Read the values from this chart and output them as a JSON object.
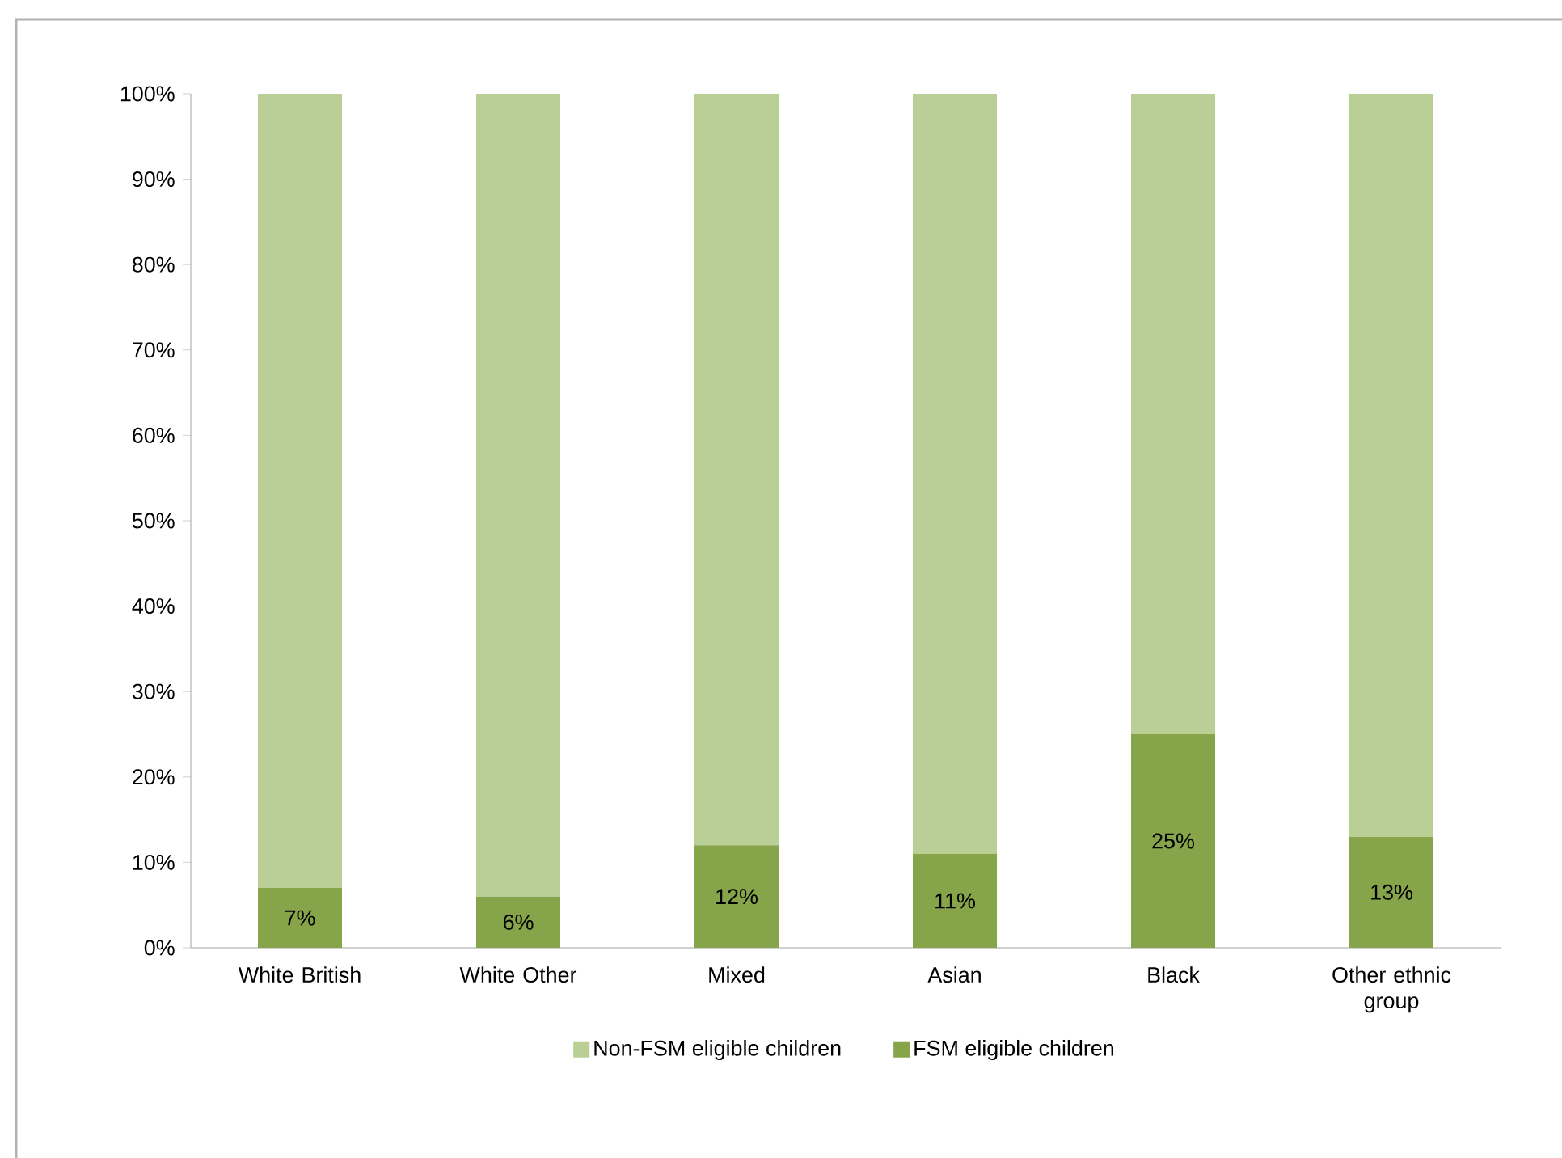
{
  "chart_data": {
    "type": "bar",
    "stacked": true,
    "categories": [
      "White British",
      "White Other",
      "Mixed",
      "Asian",
      "Black",
      "Other ethnic group"
    ],
    "series": [
      {
        "name": "FSM eligible children",
        "color": "#86a44a",
        "values": [
          7,
          6,
          12,
          11,
          25,
          13
        ],
        "value_labels": [
          "7%",
          "6%",
          "12%",
          "11%",
          "25%",
          "13%"
        ]
      },
      {
        "name": "Non-FSM eligible children",
        "color": "#b9cf96",
        "values": [
          93,
          94,
          88,
          89,
          75,
          87
        ]
      }
    ],
    "ylim": [
      0,
      100
    ],
    "yticks": [
      {
        "value": 0,
        "label": "0%"
      },
      {
        "value": 10,
        "label": "10%"
      },
      {
        "value": 20,
        "label": "20%"
      },
      {
        "value": 30,
        "label": "30%"
      },
      {
        "value": 40,
        "label": "40%"
      },
      {
        "value": 50,
        "label": "50%"
      },
      {
        "value": 60,
        "label": "60%"
      },
      {
        "value": 70,
        "label": "70%"
      },
      {
        "value": 80,
        "label": "80%"
      },
      {
        "value": 90,
        "label": "90%"
      },
      {
        "value": 100,
        "label": "100%"
      }
    ],
    "grid": false,
    "legend": "bottom"
  }
}
